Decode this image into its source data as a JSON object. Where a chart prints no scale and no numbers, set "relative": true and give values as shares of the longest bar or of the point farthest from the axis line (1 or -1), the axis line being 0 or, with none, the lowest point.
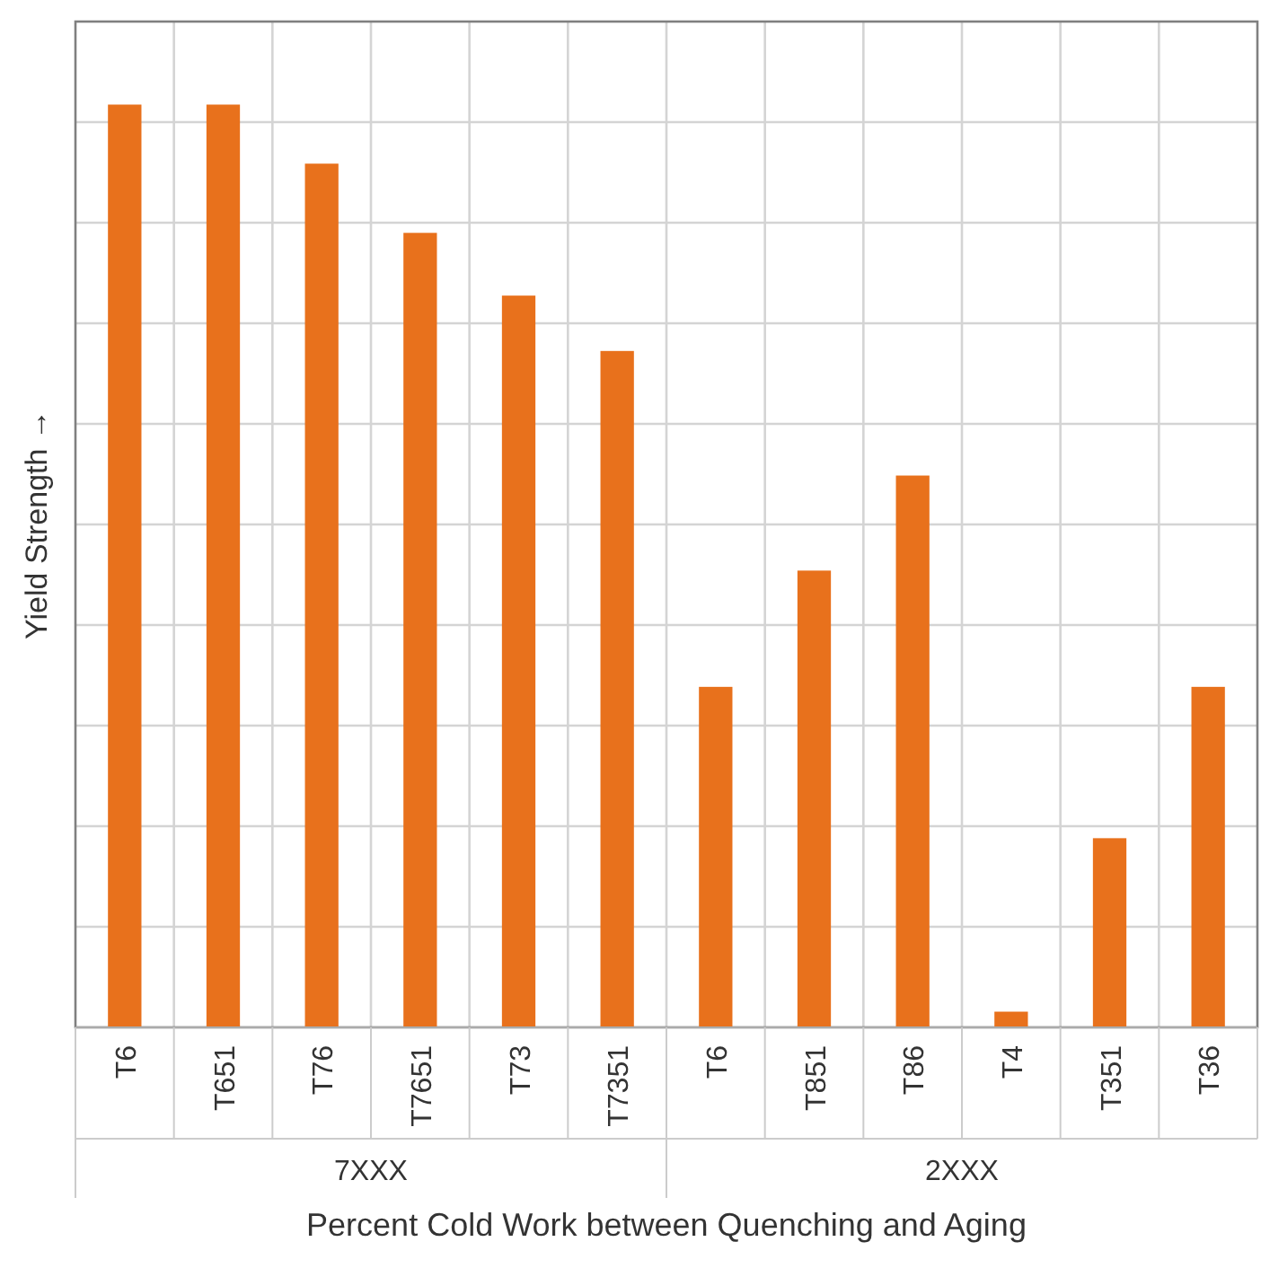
{
  "chart_data": {
    "type": "bar",
    "relative": true,
    "xlabel": "Percent Cold Work between Quenching and Aging",
    "ylabel": "Yield Strength →",
    "categories": [
      "T6",
      "T651",
      "T76",
      "T7651",
      "T73",
      "T7351",
      "T6",
      "T851",
      "T86",
      "T4",
      "T351",
      "T36"
    ],
    "values": [
      1,
      1,
      0.936,
      0.861,
      0.793,
      0.733,
      0.369,
      0.495,
      0.598,
      0.017,
      0.205,
      0.369
    ],
    "color": "#e8711c",
    "grid": true,
    "annotations": [
      "7XXX",
      "2XXX"
    ]
  }
}
